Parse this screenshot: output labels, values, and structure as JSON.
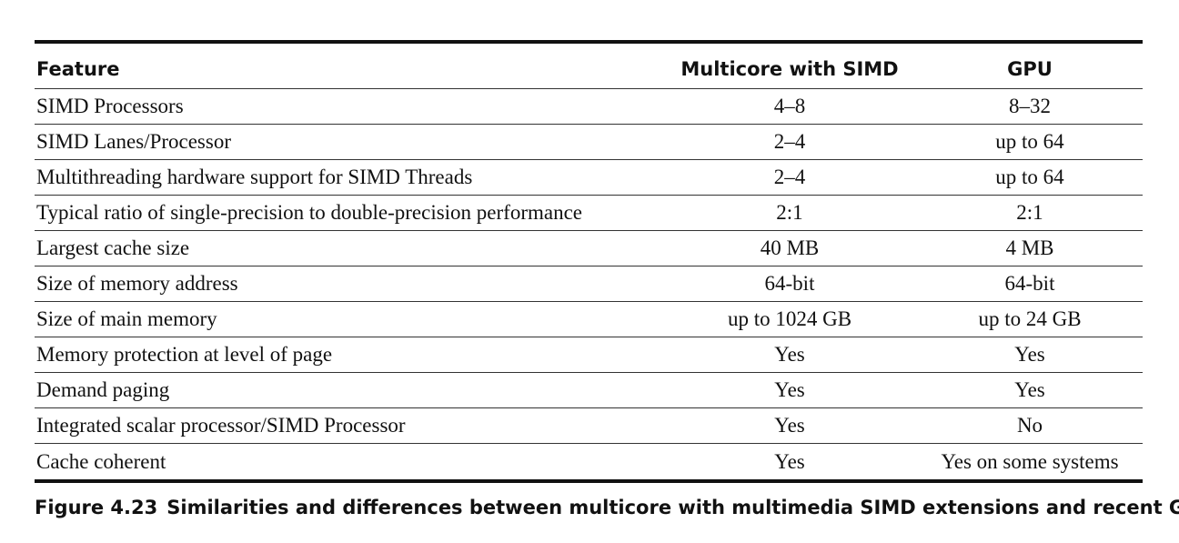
{
  "table": {
    "headers": {
      "feature": "Feature",
      "multicore": "Multicore with SIMD",
      "gpu": "GPU"
    },
    "rows": [
      {
        "feature": "SIMD Processors",
        "multicore": "4–8",
        "gpu": "8–32"
      },
      {
        "feature": "SIMD Lanes/Processor",
        "multicore": "2–4",
        "gpu": "up to 64"
      },
      {
        "feature": "Multithreading hardware support for SIMD Threads",
        "multicore": "2–4",
        "gpu": "up to 64"
      },
      {
        "feature": "Typical ratio of single-precision to double-precision performance",
        "multicore": "2:1",
        "gpu": "2:1"
      },
      {
        "feature": "Largest cache size",
        "multicore": "40 MB",
        "gpu": "4 MB"
      },
      {
        "feature": "Size of memory address",
        "multicore": "64-bit",
        "gpu": "64-bit"
      },
      {
        "feature": "Size of main memory",
        "multicore": "up to 1024 GB",
        "gpu": "up to 24 GB"
      },
      {
        "feature": "Memory protection at level of page",
        "multicore": "Yes",
        "gpu": "Yes"
      },
      {
        "feature": "Demand paging",
        "multicore": "Yes",
        "gpu": "Yes"
      },
      {
        "feature": "Integrated scalar processor/SIMD Processor",
        "multicore": "Yes",
        "gpu": "No"
      },
      {
        "feature": "Cache coherent",
        "multicore": "Yes",
        "gpu": "Yes on some systems"
      }
    ]
  },
  "caption": {
    "figure_number": "Figure 4.23",
    "text": "Similarities and differences between multicore with multimedia SIMD extensions and recent GPUs."
  }
}
